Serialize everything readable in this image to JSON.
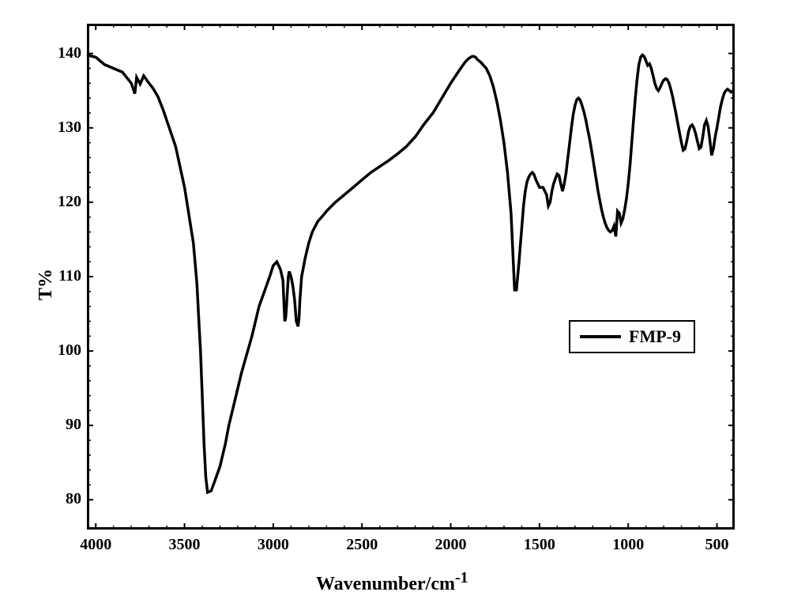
{
  "chart": {
    "type": "line",
    "background_color": "#ffffff",
    "frame_color": "#000000",
    "frame_width": 3,
    "xlabel": "Wavenumber/cm",
    "xlabel_super": "-1",
    "ylabel": "T%",
    "label_fontsize": 24,
    "tick_fontsize": 20,
    "xlim": [
      4050,
      400
    ],
    "ylim": [
      76,
      144
    ],
    "xticks": [
      4000,
      3500,
      3000,
      2500,
      2000,
      1500,
      1000,
      500
    ],
    "yticks": [
      80,
      90,
      100,
      110,
      120,
      130,
      140
    ],
    "minor_ticks": true,
    "line_color": "#000000",
    "line_width": 3.5,
    "legend": {
      "label": "FMP-9",
      "fontsize": 22,
      "position": "right-middle"
    },
    "series": {
      "x": [
        4050,
        4000,
        3950,
        3900,
        3850,
        3800,
        3780,
        3770,
        3750,
        3730,
        3700,
        3680,
        3650,
        3620,
        3600,
        3550,
        3500,
        3480,
        3450,
        3430,
        3420,
        3410,
        3400,
        3390,
        3380,
        3370,
        3350,
        3330,
        3300,
        3270,
        3250,
        3220,
        3200,
        3180,
        3150,
        3120,
        3100,
        3080,
        3050,
        3020,
        3000,
        2980,
        2960,
        2945,
        2940,
        2935,
        2930,
        2925,
        2920,
        2915,
        2910,
        2900,
        2890,
        2880,
        2870,
        2860,
        2855,
        2850,
        2840,
        2820,
        2800,
        2780,
        2750,
        2720,
        2700,
        2650,
        2600,
        2550,
        2500,
        2450,
        2400,
        2350,
        2300,
        2250,
        2200,
        2150,
        2100,
        2050,
        2000,
        1950,
        1920,
        1900,
        1880,
        1870,
        1860,
        1850,
        1830,
        1800,
        1780,
        1760,
        1740,
        1720,
        1700,
        1680,
        1660,
        1650,
        1640,
        1630,
        1615,
        1600,
        1590,
        1580,
        1570,
        1560,
        1550,
        1540,
        1530,
        1520,
        1500,
        1480,
        1460,
        1450,
        1440,
        1430,
        1420,
        1410,
        1400,
        1390,
        1380,
        1370,
        1360,
        1350,
        1340,
        1330,
        1320,
        1310,
        1300,
        1290,
        1280,
        1270,
        1260,
        1250,
        1240,
        1230,
        1220,
        1210,
        1200,
        1190,
        1180,
        1170,
        1160,
        1150,
        1140,
        1130,
        1120,
        1110,
        1100,
        1090,
        1080,
        1070,
        1060,
        1050,
        1040,
        1030,
        1020,
        1010,
        1000,
        990,
        980,
        970,
        960,
        950,
        940,
        930,
        920,
        910,
        900,
        890,
        880,
        870,
        860,
        850,
        840,
        830,
        820,
        810,
        800,
        790,
        780,
        770,
        760,
        750,
        740,
        730,
        720,
        710,
        700,
        690,
        680,
        670,
        660,
        650,
        640,
        630,
        620,
        610,
        600,
        590,
        580,
        570,
        560,
        550,
        540,
        530,
        520,
        510,
        500,
        490,
        480,
        470,
        460,
        450,
        440,
        430,
        420,
        410
      ],
      "y": [
        139.8,
        139.5,
        138.5,
        138.0,
        137.5,
        136.0,
        134.6,
        136.8,
        135.9,
        137.0,
        136.0,
        135.4,
        134.2,
        132.4,
        131.0,
        127.5,
        122.0,
        119.0,
        114.5,
        109.0,
        104.5,
        100.0,
        94.0,
        87.5,
        83.0,
        81.0,
        81.2,
        82.5,
        84.5,
        87.5,
        90.0,
        93.0,
        95.0,
        97.0,
        99.5,
        102.0,
        104.0,
        106.0,
        108.0,
        110.0,
        111.5,
        112.0,
        111.0,
        109.5,
        106.5,
        104.0,
        104.5,
        106.0,
        108.2,
        110.0,
        110.7,
        110.0,
        108.8,
        107.0,
        104.0,
        103.3,
        104.4,
        106.8,
        110.0,
        112.5,
        114.5,
        116.0,
        117.4,
        118.2,
        118.8,
        120.0,
        121.0,
        122.0,
        123.0,
        124.0,
        124.8,
        125.6,
        126.5,
        127.5,
        128.8,
        130.5,
        132.0,
        134.0,
        136.0,
        137.8,
        138.8,
        139.3,
        139.6,
        139.6,
        139.5,
        139.2,
        138.8,
        138.0,
        137.0,
        135.5,
        133.5,
        131.0,
        128.0,
        124.0,
        118.5,
        113.2,
        108.2,
        108.2,
        112.0,
        116.5,
        119.5,
        121.5,
        122.8,
        123.4,
        123.8,
        124.0,
        123.7,
        123.0,
        122.0,
        122.0,
        121.0,
        119.5,
        120.0,
        121.5,
        122.5,
        123.2,
        123.8,
        123.6,
        122.5,
        121.5,
        122.5,
        124.0,
        126.0,
        128.0,
        130.0,
        131.8,
        133.0,
        133.8,
        134.0,
        133.7,
        133.0,
        132.2,
        131.2,
        130.0,
        128.8,
        127.5,
        126.0,
        124.5,
        123.0,
        121.5,
        120.2,
        119.0,
        118.0,
        117.2,
        116.6,
        116.2,
        116.0,
        116.2,
        116.8,
        115.4,
        118.8,
        118.5,
        117.2,
        117.8,
        119.0,
        120.5,
        122.5,
        125.0,
        128.0,
        131.0,
        134.0,
        136.5,
        138.5,
        139.5,
        139.8,
        139.6,
        139.0,
        138.4,
        138.6,
        138.0,
        137.0,
        136.0,
        135.3,
        135.0,
        135.4,
        136.0,
        136.4,
        136.6,
        136.5,
        136.0,
        135.2,
        134.2,
        133.0,
        131.8,
        130.5,
        129.2,
        128.0,
        127.0,
        127.2,
        128.2,
        129.5,
        130.2,
        130.4,
        130.0,
        129.2,
        128.2,
        127.2,
        127.4,
        128.8,
        130.4,
        131.0,
        130.2,
        128.4,
        126.3,
        127.2,
        128.8,
        130.0,
        131.4,
        132.8,
        133.8,
        134.6,
        135.0,
        135.2,
        135.0,
        134.8,
        135.0
      ]
    }
  }
}
